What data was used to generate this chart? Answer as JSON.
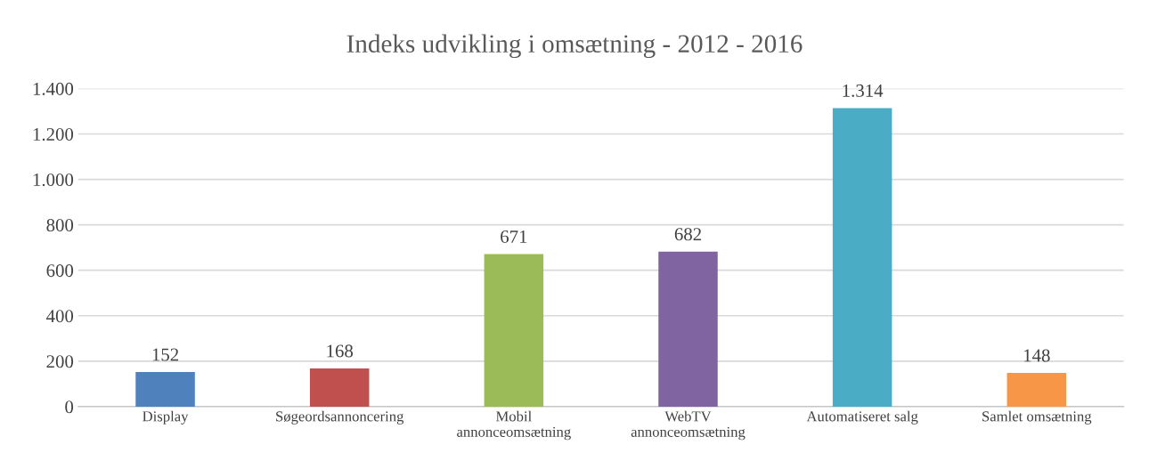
{
  "chart_data": {
    "type": "bar",
    "title": "Indeks udvikling i omsætning - 2012 - 2016",
    "categories": [
      "Display",
      "Søgeordsannoncering",
      "Mobil\nannonceomsætning",
      "WebTV\nannonceomsætning",
      "Automatiseret salg",
      "Samlet omsætning"
    ],
    "values": [
      152,
      168,
      671,
      682,
      1314,
      148
    ],
    "colors": [
      "#4f81bd",
      "#c0504d",
      "#9bbb59",
      "#8064a2",
      "#4bacc6",
      "#f79646"
    ],
    "value_labels": [
      "152",
      "168",
      "671",
      "682",
      "1.314",
      "148"
    ],
    "ylim": [
      0,
      1400
    ],
    "yticks": [
      {
        "value": 0,
        "label": "0"
      },
      {
        "value": 200,
        "label": "200"
      },
      {
        "value": 400,
        "label": "400"
      },
      {
        "value": 600,
        "label": "600"
      },
      {
        "value": 800,
        "label": "800"
      },
      {
        "value": 1000,
        "label": "1.000"
      },
      {
        "value": 1200,
        "label": "1.200"
      },
      {
        "value": 1400,
        "label": "1.400"
      }
    ],
    "grid": "y",
    "legend": false
  }
}
